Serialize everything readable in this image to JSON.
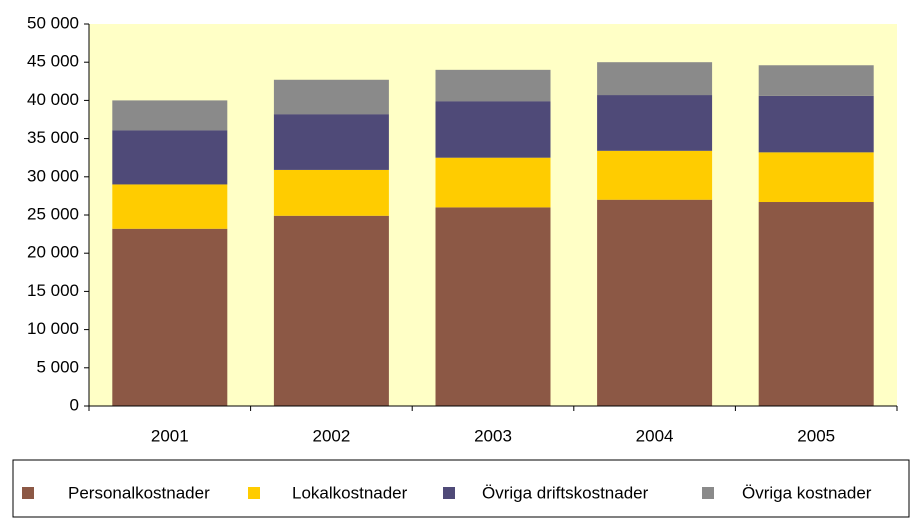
{
  "chart_data": {
    "type": "bar",
    "stacked": true,
    "categories": [
      "2001",
      "2002",
      "2003",
      "2004",
      "2005"
    ],
    "series": [
      {
        "name": "Personalkostnader",
        "color": "#8c5845",
        "values": [
          23200,
          24900,
          26000,
          27000,
          26700
        ]
      },
      {
        "name": "Lokalkostnader",
        "color": "#ffcc00",
        "values": [
          5800,
          6000,
          6500,
          6400,
          6500
        ]
      },
      {
        "name": "Övriga driftskostnader",
        "color": "#4f4a78",
        "values": [
          7100,
          7300,
          7400,
          7300,
          7400
        ]
      },
      {
        "name": "Övriga kostnader",
        "color": "#8a8a8a",
        "values": [
          3900,
          4500,
          4100,
          4300,
          4000
        ]
      }
    ],
    "ylim": [
      0,
      50000
    ],
    "yticks": [
      0,
      {
        "value": 5000,
        "label": "5 000"
      },
      {
        "value": 10000,
        "label": "10 000"
      },
      {
        "value": 15000,
        "label": "15 000"
      },
      {
        "value": 20000,
        "label": "20 000"
      },
      {
        "value": 25000,
        "label": "25 000"
      },
      {
        "value": 30000,
        "label": "30 000"
      },
      {
        "value": 35000,
        "label": "35 000"
      },
      {
        "value": 40000,
        "label": "40 000"
      },
      {
        "value": 45000,
        "label": "45 000"
      },
      {
        "value": 50000,
        "label": "50 000"
      }
    ],
    "plot_background": "#ffffc6",
    "legend": "bottom"
  }
}
